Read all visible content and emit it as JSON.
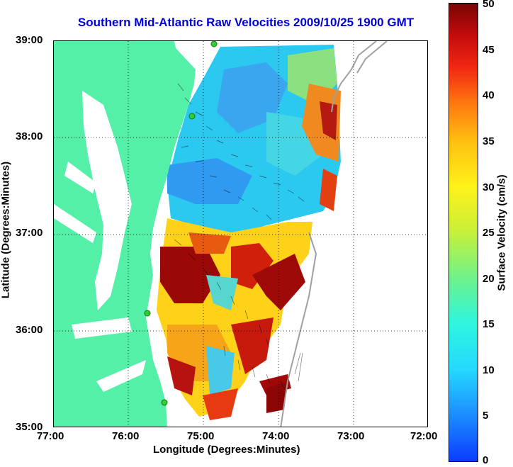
{
  "title": "Southern Mid-Atlantic Raw Velocities 2009/10/25 1900 GMT",
  "axes": {
    "xlabel": "Longitude (Degrees:Minutes)",
    "ylabel": "Latitude (Degrees:Minutes)",
    "x_ticks": [
      "77:00",
      "76:00",
      "75:00",
      "74:00",
      "73:00",
      "72:00"
    ],
    "y_ticks": [
      "39:00",
      "38:00",
      "37:00",
      "36:00",
      "35:00"
    ]
  },
  "colorbar": {
    "label": "Surface Velocity (cm/s)",
    "ticks": [
      "50",
      "45",
      "40",
      "35",
      "30",
      "25",
      "20",
      "15",
      "10",
      "5",
      "0"
    ],
    "range": [
      0,
      50
    ]
  },
  "colors": {
    "land": "#55f0a8",
    "ocean": "#ffffff",
    "grid": "#000000",
    "title": "#0000dd",
    "bathymetry": "#a0a0a0",
    "station": "#33cc33"
  }
}
